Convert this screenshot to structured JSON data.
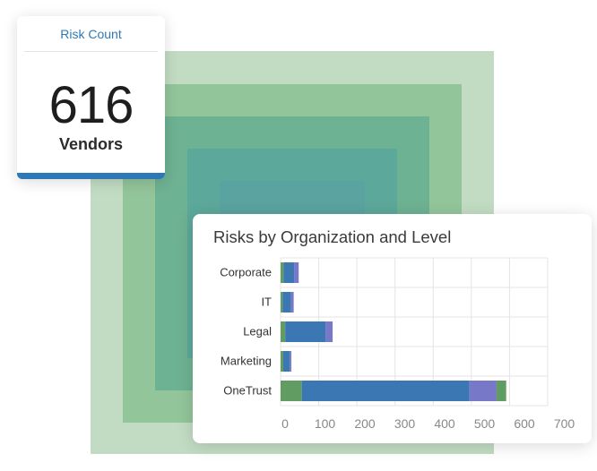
{
  "risk_card": {
    "title": "Risk Count",
    "count": "616",
    "subtitle": "Vendors"
  },
  "colors": {
    "accent_blue": "#2f78b7",
    "square_tints": [
      "#c2dcc3",
      "#93c59a",
      "#6db292",
      "#5ca89a",
      "#5aa3a0"
    ]
  },
  "chart_data": {
    "type": "bar",
    "orientation": "horizontal",
    "stacked": true,
    "title": "Risks by Organization and Level",
    "categories": [
      "Corporate",
      "IT",
      "Legal",
      "Marketing",
      "OneTrust"
    ],
    "series": [
      {
        "color": "#619c63",
        "values": [
          8,
          5,
          12,
          7,
          55
        ]
      },
      {
        "color": "#3b78b3",
        "values": [
          27,
          22,
          105,
          17,
          435
        ]
      },
      {
        "color": "#7878c8",
        "values": [
          12,
          7,
          18,
          4,
          70
        ]
      },
      {
        "color": "#619c63",
        "values": [
          0,
          0,
          0,
          0,
          25
        ]
      }
    ],
    "xlim": [
      0,
      700
    ],
    "xticks": [
      "0",
      "100",
      "200",
      "300",
      "400",
      "500",
      "600",
      "700"
    ],
    "grid": true,
    "legend": "none"
  }
}
